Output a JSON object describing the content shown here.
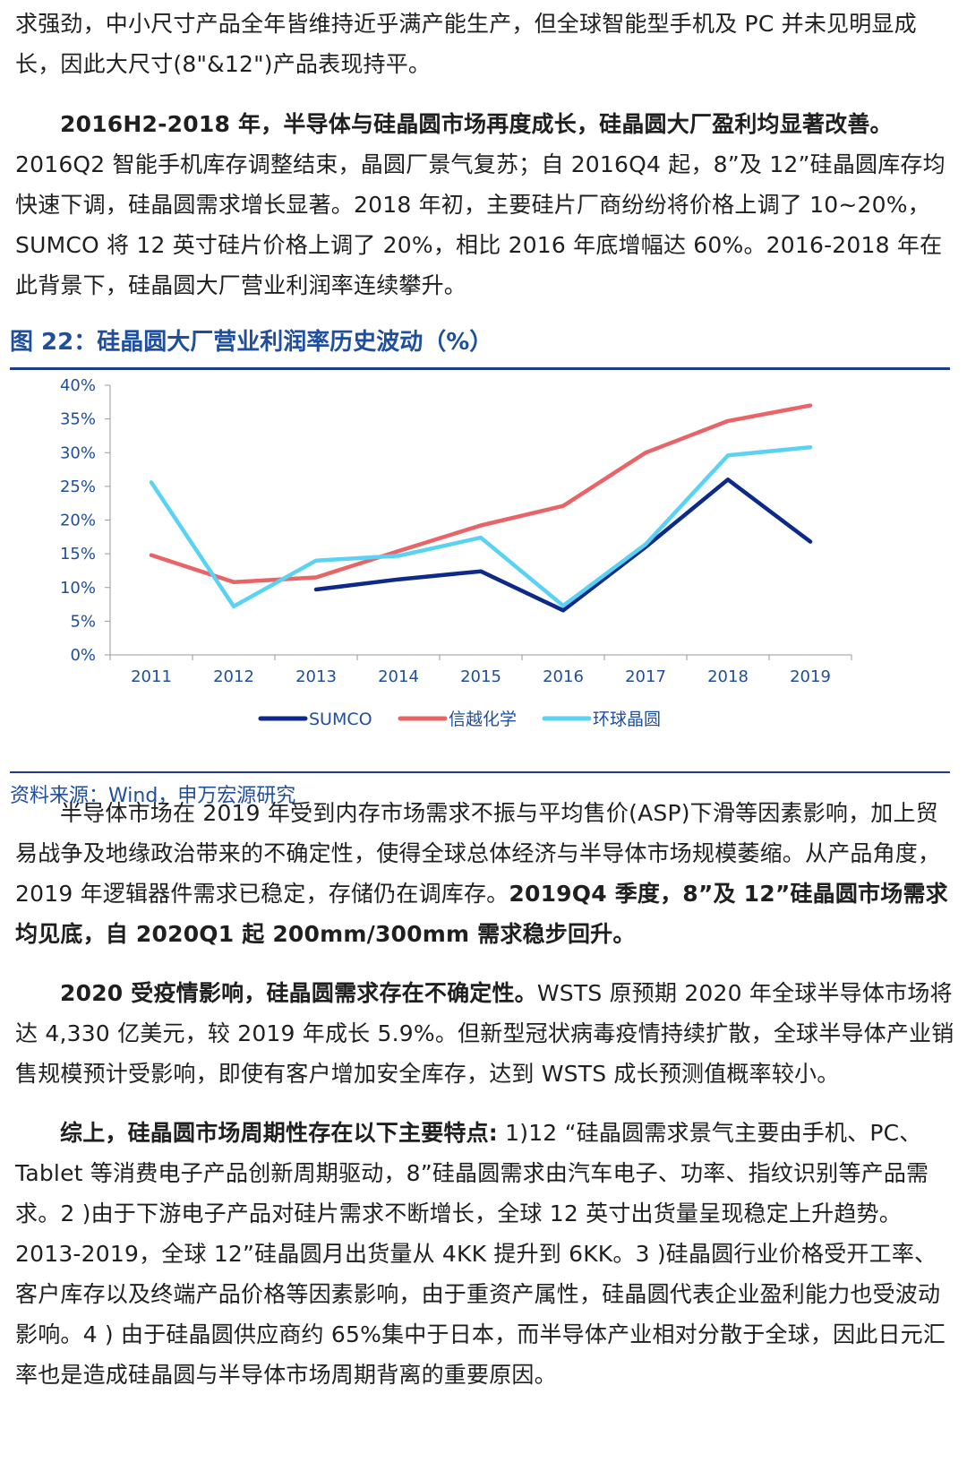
{
  "paragraphs": {
    "p1": {
      "text": "求强劲，中小尺寸产品全年皆维持近乎满产能生产，但全球智能型手机及 PC 并未见明显成长，因此大尺寸(8\"&12\")产品表现持平。"
    },
    "p2": {
      "bold": "2016H2-2018 年，半导体与硅晶圆市场再度成长，硅晶圆大厂盈利均显著改善。",
      "text": "2016Q2 智能手机库存调整结束，晶圆厂景气复苏；自 2016Q4 起，8”及 12”硅晶圆库存均快速下调，硅晶圆需求增长显著。2018 年初，主要硅片厂商纷纷将价格上调了 10~20%，SUMCO 将 12 英寸硅片价格上调了 20%，相比 2016 年底增幅达 60%。2016-2018 年在此背景下，硅晶圆大厂营业利润率连续攀升。"
    },
    "p3": {
      "text": "半导体市场在 2019 年受到内存市场需求不振与平均售价(ASP)下滑等因素影响，加上贸易战争及地缘政治带来的不确定性，使得全球总体经济与半导体市场规模萎缩。从产品角度，2019 年逻辑器件需求已稳定，存储仍在调库存。",
      "bold": "2019Q4 季度，8”及 12”硅晶圆市场需求均见底，自 2020Q1 起 200mm/300mm 需求稳步回升。"
    },
    "p4": {
      "bold": "2020 受疫情影响，硅晶圆需求存在不确定性。",
      "text": "WSTS 原预期 2020 年全球半导体市场将达 4,330 亿美元，较 2019 年成长 5.9%。但新型冠状病毒疫情持续扩散，全球半导体产业销售规模预计受影响，即使有客户增加安全库存，达到 WSTS 成长预测值概率较小。"
    },
    "p5": {
      "bold": "综上，硅晶圆市场周期性存在以下主要特点:",
      "text": " 1)12 “硅晶圆需求景气主要由手机、PC、Tablet 等消费电子产品创新周期驱动，8”硅晶圆需求由汽车电子、功率、指纹识别等产品需求。2 )由于下游电子产品对硅片需求不断增长，全球 12 英寸出货量呈现稳定上升趋势。2013-2019，全球 12”硅晶圆月出货量从 4KK 提升到 6KK。3 )硅晶圆行业价格受开工率、客户库存以及终端产品价格等因素影响，由于重资产属性，硅晶圆代表企业盈利能力也受波动影响。4 ) 由于硅晶圆供应商约 65%集中于日本，而半导体产业相对分散于全球，因此日元汇率也是造成硅晶圆与半导体市场周期背离的重要原因。"
    }
  },
  "figure": {
    "title": "图 22：硅晶圆大厂营业利润率历史波动（%）",
    "source": "资料来源：Wind，申万宏源研究"
  },
  "chart_data": {
    "type": "line",
    "title": "",
    "xlabel": "",
    "ylabel": "",
    "x": [
      "2011",
      "2012",
      "2013",
      "2014",
      "2015",
      "2016",
      "2017",
      "2018",
      "2019"
    ],
    "y_ticks": [
      "0%",
      "5%",
      "10%",
      "15%",
      "20%",
      "25%",
      "30%",
      "35%",
      "40%"
    ],
    "ylim": [
      0,
      40
    ],
    "grid": false,
    "legend_position": "bottom",
    "series": [
      {
        "name": "SUMCO",
        "color": "#0d2a8a",
        "values": [
          null,
          null,
          9.7,
          11.2,
          12.4,
          6.6,
          16.0,
          26.0,
          16.8
        ]
      },
      {
        "name": "信越化学",
        "color": "#e86466",
        "values": [
          14.8,
          10.8,
          11.5,
          15.4,
          19.2,
          22.1,
          30.0,
          34.7,
          37.0
        ]
      },
      {
        "name": "环球晶圆",
        "color": "#5ad2f4",
        "values": [
          25.6,
          7.2,
          14.0,
          14.7,
          17.4,
          7.3,
          16.4,
          29.6,
          30.8
        ]
      }
    ]
  }
}
